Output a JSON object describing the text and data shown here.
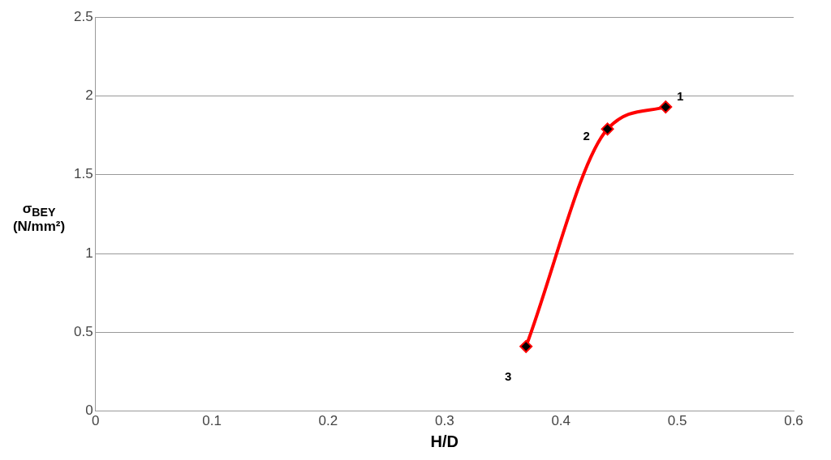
{
  "chart_data": {
    "type": "line",
    "xlabel": "H/D",
    "ylabel": "σ$_{BEY}$ (N/mm²)",
    "x": [
      0.37,
      0.44,
      0.49
    ],
    "series": [
      {
        "color": "#ff0000",
        "values": [
          0.41,
          1.79,
          1.93
        ]
      }
    ],
    "xlim": [
      0,
      0.6
    ],
    "xticks": [
      0,
      0.1,
      0.2,
      0.3,
      0.4,
      0.5,
      0.6
    ],
    "ylim": [
      0,
      2.5
    ],
    "yticks": [
      0,
      0.5,
      1,
      1.5,
      2,
      2.5
    ],
    "grid": "y",
    "legend": false,
    "marker": "diamond",
    "line_style": "solid",
    "annotations": [
      {
        "text": "3",
        "x": 0.37,
        "y": 0.41
      },
      {
        "text": "2",
        "x": 0.44,
        "y": 1.79
      },
      {
        "text": "1",
        "x": 0.49,
        "y": 1.93
      }
    ]
  }
}
